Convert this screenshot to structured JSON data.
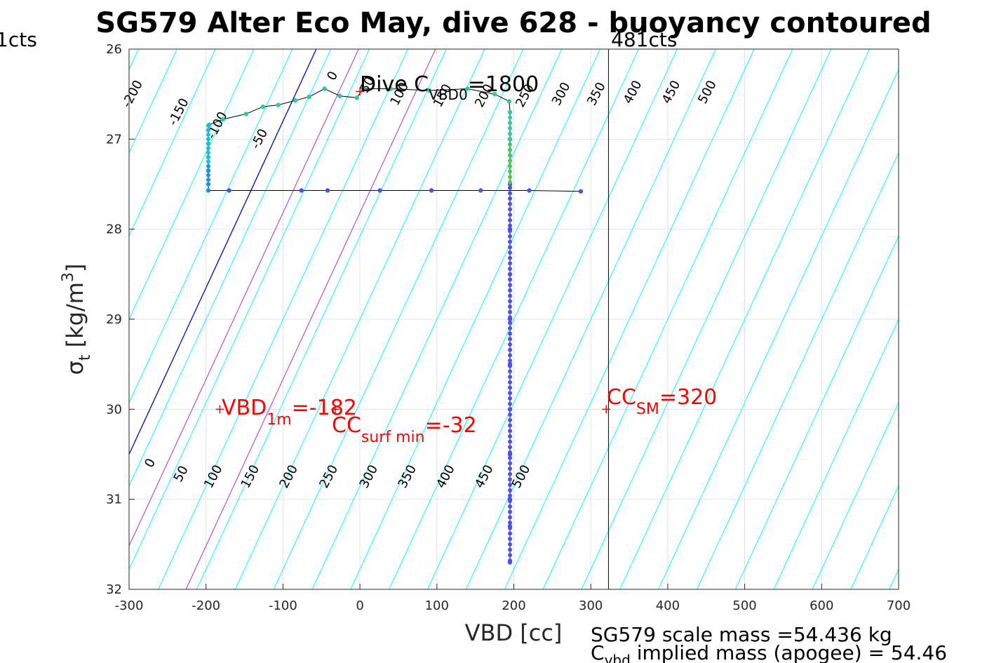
{
  "chart_data": {
    "type": "scatter",
    "title": "SG579 Alter Eco May, dive 628 - buoyancy contoured",
    "xlabel": "VBD [cc]",
    "ylabel_symbol": "σ",
    "ylabel_sub": "t",
    "ylabel_unit": " [kg/m",
    "ylabel_sup": "3",
    "ylabel_close": "]",
    "xlim": [
      -300,
      700
    ],
    "ylim": [
      26,
      32
    ],
    "y_reversed": true,
    "grid": true,
    "xticks": [
      -300,
      -200,
      -100,
      0,
      100,
      200,
      300,
      400,
      500,
      600,
      700
    ],
    "xtick_labels": [
      "-300",
      "-200",
      "-100",
      "0",
      "100",
      "200",
      "300",
      "400",
      "500",
      "600",
      "700"
    ],
    "yticks": [
      26,
      27,
      28,
      29,
      30,
      31,
      32
    ],
    "ytick_labels": [
      "26",
      "27",
      "28",
      "29",
      "30",
      "31",
      "32"
    ],
    "colors": {
      "contour_cyan": "#00ffff",
      "contour_magenta": "#b428d2",
      "contour_blue": "#0000c8",
      "annotation_red": "#ff0000",
      "line_black": "#000000"
    },
    "upper_contours": [
      {
        "label": "-200",
        "anchor": [
          -295,
          26.5
        ]
      },
      {
        "label": "-150",
        "anchor": [
          -235,
          26.7
        ]
      },
      {
        "label": "-100",
        "anchor": [
          -185,
          26.85
        ]
      },
      {
        "label": "-50",
        "anchor": [
          -130,
          27.0
        ]
      },
      {
        "label": "0",
        "anchor": [
          -35,
          26.3
        ]
      },
      {
        "label": "50",
        "anchor": [
          10,
          26.4
        ]
      },
      {
        "label": "100",
        "anchor": [
          52,
          26.5
        ]
      },
      {
        "label": "150",
        "anchor": [
          108,
          26.52
        ]
      },
      {
        "label": "200",
        "anchor": [
          162,
          26.52
        ]
      },
      {
        "label": "250",
        "anchor": [
          215,
          26.52
        ]
      },
      {
        "label": "300",
        "anchor": [
          262,
          26.5
        ]
      },
      {
        "label": "350",
        "anchor": [
          308,
          26.5
        ]
      },
      {
        "label": "400",
        "anchor": [
          355,
          26.48
        ]
      },
      {
        "label": "450",
        "anchor": [
          405,
          26.48
        ]
      },
      {
        "label": "500",
        "anchor": [
          452,
          26.48
        ]
      }
    ],
    "lower_contours": [
      {
        "label": "0",
        "anchor": [
          -272,
          30.6
        ]
      },
      {
        "label": "50",
        "anchor": [
          -232,
          30.72
        ]
      },
      {
        "label": "100",
        "anchor": [
          -190,
          30.75
        ]
      },
      {
        "label": "150",
        "anchor": [
          -142,
          30.75
        ]
      },
      {
        "label": "200",
        "anchor": [
          -92,
          30.75
        ]
      },
      {
        "label": "250",
        "anchor": [
          -40,
          30.75
        ]
      },
      {
        "label": "300",
        "anchor": [
          12,
          30.75
        ]
      },
      {
        "label": "350",
        "anchor": [
          62,
          30.75
        ]
      },
      {
        "label": "400",
        "anchor": [
          112,
          30.75
        ]
      },
      {
        "label": "450",
        "anchor": [
          162,
          30.75
        ]
      },
      {
        "label": "500",
        "anchor": [
          210,
          30.75
        ]
      }
    ],
    "dive_track": {
      "points": [
        {
          "x": 287,
          "y": 27.58
        },
        {
          "x": 220,
          "y": 27.57
        },
        {
          "x": 157,
          "y": 27.57
        },
        {
          "x": 93,
          "y": 27.57
        },
        {
          "x": 26,
          "y": 27.57
        },
        {
          "x": -42,
          "y": 27.57
        },
        {
          "x": -76,
          "y": 27.57
        },
        {
          "x": -170,
          "y": 27.57
        },
        {
          "x": -197,
          "y": 27.57
        },
        {
          "x": -197,
          "y": 27.5
        },
        {
          "x": -197,
          "y": 27.35
        },
        {
          "x": -197,
          "y": 27.2
        },
        {
          "x": -197,
          "y": 27.05
        },
        {
          "x": -197,
          "y": 26.9
        },
        {
          "x": -196,
          "y": 26.84
        },
        {
          "x": -178,
          "y": 26.78
        },
        {
          "x": -148,
          "y": 26.72
        },
        {
          "x": -126,
          "y": 26.64
        },
        {
          "x": -106,
          "y": 26.62
        },
        {
          "x": -84,
          "y": 26.57
        },
        {
          "x": -66,
          "y": 26.53
        },
        {
          "x": -46,
          "y": 26.44
        },
        {
          "x": -26,
          "y": 26.52
        },
        {
          "x": -4,
          "y": 26.54
        },
        {
          "x": 4,
          "y": 26.44
        },
        {
          "x": 40,
          "y": 26.44
        },
        {
          "x": 90,
          "y": 26.46
        },
        {
          "x": 140,
          "y": 26.44
        },
        {
          "x": 175,
          "y": 26.5
        },
        {
          "x": 194,
          "y": 26.58
        },
        {
          "x": 195,
          "y": 26.7
        },
        {
          "x": 195,
          "y": 27.0
        },
        {
          "x": 195,
          "y": 27.5
        },
        {
          "x": 195,
          "y": 28.0
        },
        {
          "x": 195,
          "y": 28.5
        },
        {
          "x": 195,
          "y": 29.0
        },
        {
          "x": 195,
          "y": 29.5
        },
        {
          "x": 195,
          "y": 30.0
        },
        {
          "x": 195,
          "y": 30.5
        },
        {
          "x": 195,
          "y": 31.0
        },
        {
          "x": 195,
          "y": 31.3
        },
        {
          "x": 195,
          "y": 31.7
        }
      ]
    },
    "vertical_line": {
      "x": 323,
      "top_label": "481cts",
      "left_label": "1cts"
    },
    "annotations": {
      "dive_c": {
        "text": "Dive C",
        "sub": "VBD",
        "suffix_sub": "0",
        "value": "=1800",
        "marker": [
          0,
          26.47
        ]
      },
      "vbd_1m": {
        "text": "VBD",
        "sub": "1m",
        "value": "=-182",
        "marker": [
          -182,
          30.0
        ]
      },
      "cc_surf_min": {
        "text": "CC",
        "sub": "surf min",
        "value": "=-32",
        "marker": [
          -32,
          30.0
        ]
      },
      "cc_sm": {
        "text": "CC",
        "sub": "SM",
        "value": "=320",
        "marker": [
          320,
          30.0
        ]
      }
    },
    "footer": {
      "scale_mass": "SG579 scale mass =54.436 kg",
      "implied_prefix": "C",
      "implied_sub": "vbd",
      "implied_rest": " implied mass (apogee) = 54.46"
    }
  }
}
